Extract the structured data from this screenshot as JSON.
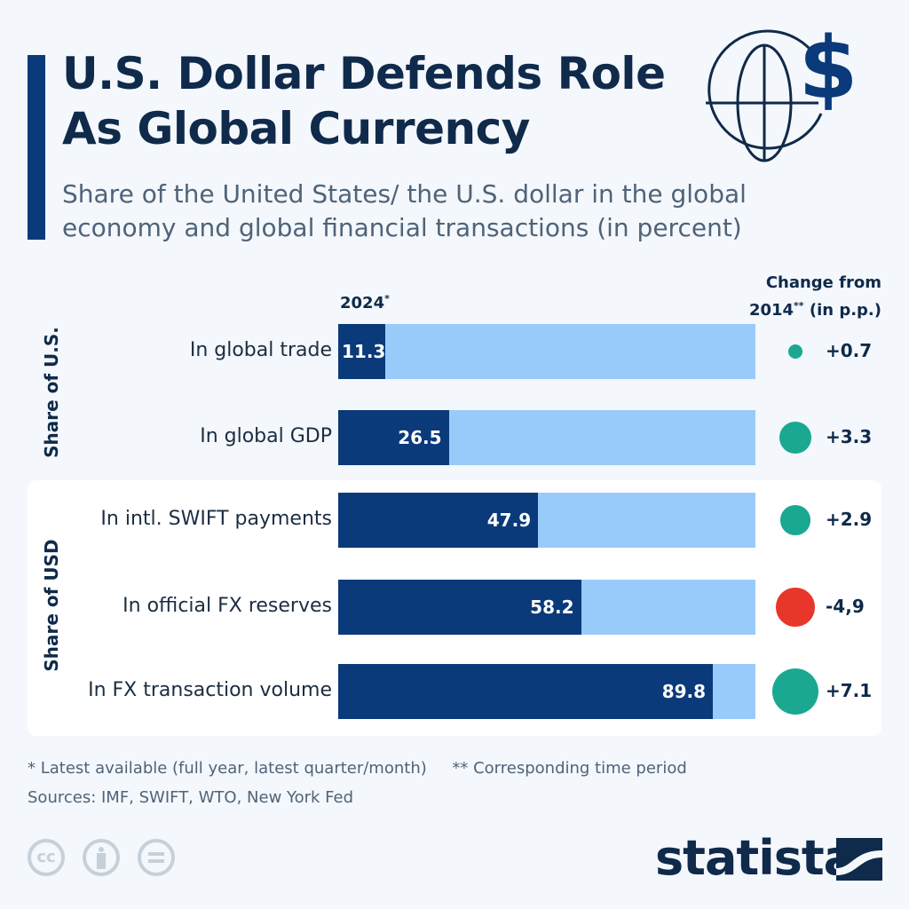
{
  "title_line1": "U.S. Dollar Defends Role",
  "title_line2": "As Global Currency",
  "subtitle": "Share of the United States/ the U.S. dollar in the global economy and global financial transactions (in percent)",
  "icons": {
    "header": "globe-dollar-icon"
  },
  "chart_data": {
    "type": "bar",
    "orientation": "horizontal",
    "xlim": [
      0,
      100
    ],
    "value_header": "2024",
    "value_header_mark": "*",
    "change_header_line1": "Change from",
    "change_header_line2": "2014",
    "change_header_mark": "**",
    "change_header_unit": "(in p.p.)",
    "groups": [
      {
        "name": "Share of U.S."
      },
      {
        "name": "Share of USD"
      }
    ],
    "colors": {
      "bar": "#0b3a7a",
      "track": "#99cbfa",
      "positive": "#1aa893",
      "negative": "#e8362b"
    },
    "rows": [
      {
        "group": "Share of U.S.",
        "category": "In global trade",
        "value": 11.3,
        "value_label": "11.3",
        "change": 0.7,
        "change_label": "+0.7"
      },
      {
        "group": "Share of U.S.",
        "category": "In global GDP",
        "value": 26.5,
        "value_label": "26.5",
        "change": 3.3,
        "change_label": "+3.3"
      },
      {
        "group": "Share of USD",
        "category": "In intl. SWIFT payments",
        "value": 47.9,
        "value_label": "47.9",
        "change": 2.9,
        "change_label": "+2.9"
      },
      {
        "group": "Share of USD",
        "category": "In official FX reserves",
        "value": 58.2,
        "value_label": "58.2",
        "change": -4.9,
        "change_label": "-4,9"
      },
      {
        "group": "Share of USD",
        "category": "In FX transaction volume",
        "value": 89.8,
        "value_label": "89.8",
        "change": 7.1,
        "change_label": "+7.1"
      }
    ]
  },
  "footnote1": "* Latest available (full year, latest quarter/month)",
  "footnote2": "** Corresponding time period",
  "sources": "Sources: IMF, SWIFT, WTO, New York Fed",
  "license_icons": [
    "cc-icon",
    "attribution-icon",
    "no-derivatives-icon"
  ],
  "brand": "statista"
}
